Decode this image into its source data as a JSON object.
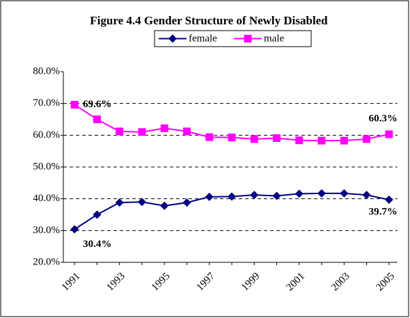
{
  "chart_data": {
    "type": "line",
    "title": "Figure 4.4 Gender Structure of Newly Disabled",
    "categories": [
      "1991",
      null,
      "1993",
      null,
      "1995",
      null,
      "1997",
      null,
      "1999",
      null,
      "2001",
      null,
      "2003",
      null,
      "2005"
    ],
    "series": [
      {
        "name": "female",
        "color": "#000080",
        "marker": "diamond",
        "values": [
          30.4,
          35.0,
          38.8,
          39.0,
          37.8,
          38.8,
          40.6,
          40.7,
          41.2,
          40.9,
          41.6,
          41.7,
          41.7,
          41.2,
          39.7
        ],
        "value_labels": [
          "30.4%",
          null,
          null,
          null,
          null,
          null,
          null,
          null,
          null,
          null,
          null,
          null,
          null,
          null,
          "39.7%"
        ]
      },
      {
        "name": "male",
        "color": "#ff00ff",
        "marker": "square",
        "values": [
          69.6,
          65.0,
          61.2,
          61.0,
          62.2,
          61.2,
          59.4,
          59.3,
          58.8,
          59.1,
          58.4,
          58.3,
          58.3,
          58.8,
          60.3
        ],
        "value_labels": [
          "69.6%",
          null,
          null,
          null,
          null,
          null,
          null,
          null,
          null,
          null,
          null,
          null,
          null,
          null,
          "60.3%"
        ]
      }
    ],
    "ylim": [
      20,
      80
    ],
    "yticks": [
      {
        "value": 20,
        "label": "20.0%"
      },
      {
        "value": 30,
        "label": "30.0%"
      },
      {
        "value": 40,
        "label": "40.0%"
      },
      {
        "value": 50,
        "label": "50.0%"
      },
      {
        "value": 60,
        "label": "60.0%"
      },
      {
        "value": 70,
        "label": "70.0%"
      },
      {
        "value": 80,
        "label": "80.0%"
      }
    ],
    "grid": true
  }
}
